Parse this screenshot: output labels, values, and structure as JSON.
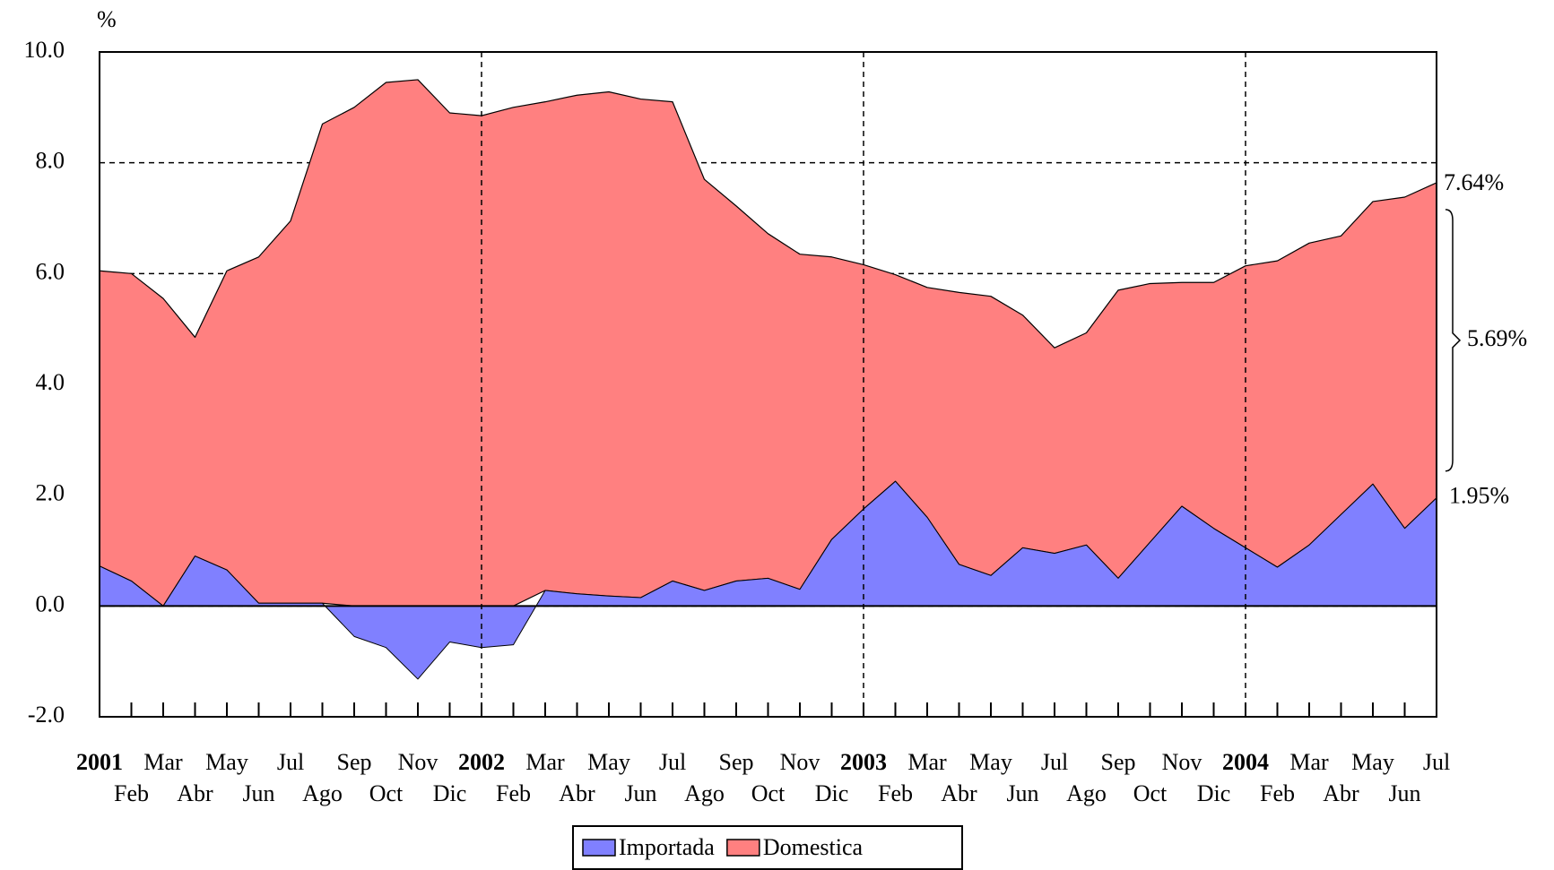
{
  "chart_data": {
    "type": "area",
    "stacked": true,
    "y_axis_label": "%",
    "categories": [
      "2001",
      "Feb",
      "Mar",
      "Abr",
      "May",
      "Jun",
      "Jul",
      "Ago",
      "Sep",
      "Oct",
      "Nov",
      "Dic",
      "2002",
      "Feb",
      "Mar",
      "Abr",
      "May",
      "Jun",
      "Jul",
      "Ago",
      "Sep",
      "Oct",
      "Nov",
      "Dic",
      "2003",
      "Feb",
      "Mar",
      "Abr",
      "May",
      "Jun",
      "Jul",
      "Ago",
      "Sep",
      "Oct",
      "Nov",
      "Dic",
      "2004",
      "Feb",
      "Mar",
      "Abr",
      "May",
      "Jun",
      "Jul"
    ],
    "series": [
      {
        "name": "Importada",
        "color": "#8080ff",
        "values": [
          0.72,
          0.45,
          0.0,
          0.9,
          0.65,
          0.05,
          0.05,
          0.05,
          -0.55,
          -0.75,
          -1.32,
          -0.65,
          -0.75,
          -0.7,
          0.28,
          0.22,
          0.18,
          0.15,
          0.45,
          0.28,
          0.45,
          0.5,
          0.3,
          1.2,
          1.75,
          2.25,
          1.6,
          0.75,
          0.55,
          1.05,
          0.95,
          1.1,
          0.5,
          1.15,
          1.8,
          1.4,
          1.05,
          0.7,
          1.1,
          1.65,
          2.2,
          1.4,
          1.95
        ],
        "value_labels": [
          null,
          null,
          null,
          null,
          null,
          null,
          null,
          null,
          null,
          null,
          null,
          null,
          null,
          null,
          null,
          null,
          null,
          null,
          null,
          null,
          null,
          null,
          null,
          null,
          null,
          null,
          null,
          null,
          null,
          null,
          null,
          null,
          null,
          null,
          null,
          null,
          null,
          null,
          null,
          null,
          null,
          null,
          "1.95%"
        ]
      },
      {
        "name": "Domestica",
        "color": "#ff8080",
        "values": [
          5.33,
          5.55,
          5.55,
          3.95,
          5.4,
          6.25,
          6.9,
          8.65,
          9.0,
          9.45,
          9.5,
          8.9,
          8.85,
          9.0,
          8.82,
          9.0,
          9.1,
          9.0,
          8.65,
          7.42,
          6.77,
          6.22,
          6.05,
          5.1,
          4.41,
          3.73,
          4.15,
          4.91,
          5.04,
          4.2,
          3.71,
          3.83,
          5.2,
          4.67,
          4.04,
          4.44,
          5.09,
          5.53,
          5.45,
          5.03,
          5.1,
          5.98,
          5.69
        ],
        "value_labels": [
          null,
          null,
          null,
          null,
          null,
          null,
          null,
          null,
          null,
          null,
          null,
          null,
          null,
          null,
          null,
          null,
          null,
          null,
          null,
          null,
          null,
          null,
          null,
          null,
          null,
          null,
          null,
          null,
          null,
          null,
          null,
          null,
          null,
          null,
          null,
          null,
          null,
          null,
          null,
          null,
          null,
          null,
          "5.69%"
        ]
      }
    ],
    "annotations": [
      {
        "value": 7.64,
        "label": "7.64%"
      }
    ],
    "ylim": [
      -2,
      10
    ],
    "yticks": [
      {
        "value": -2,
        "label": "-2.0"
      },
      {
        "value": 0,
        "label": "0.0"
      },
      {
        "value": 2,
        "label": "2.0"
      },
      {
        "value": 4,
        "label": "4.0"
      },
      {
        "value": 6,
        "label": "6.0"
      },
      {
        "value": 8,
        "label": "8.0"
      },
      {
        "value": 10,
        "label": "10.0"
      }
    ],
    "grid": true,
    "legend": "bottom"
  }
}
